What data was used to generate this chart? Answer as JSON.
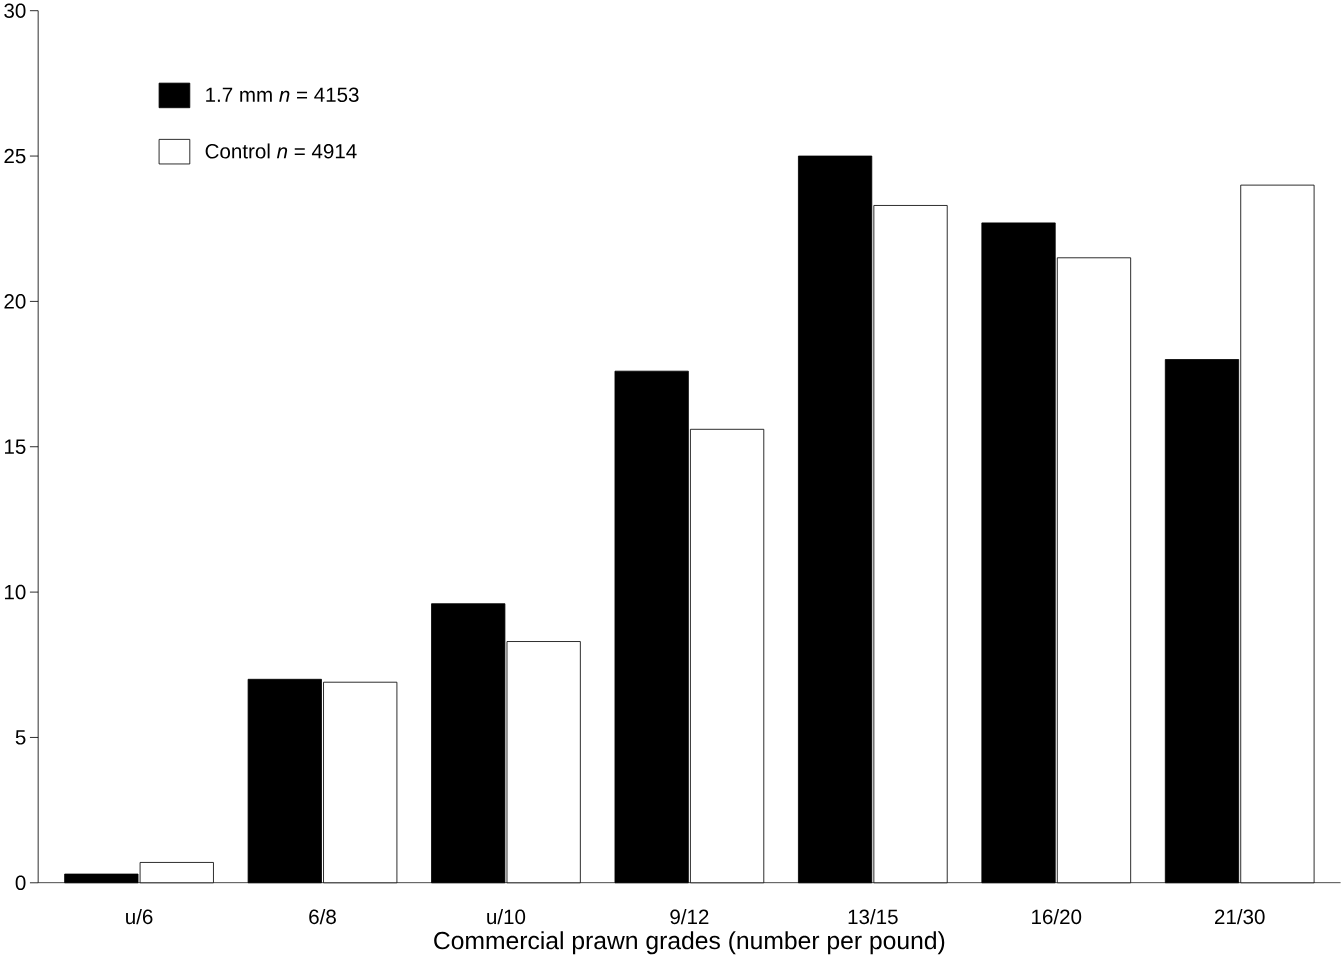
{
  "chart_data": {
    "type": "bar",
    "xlabel": "Commercial prawn grades (number per pound)",
    "categories": [
      "u/6",
      "6/8",
      "u/10",
      "9/12",
      "13/15",
      "16/20",
      "21/30"
    ],
    "series": [
      {
        "name": "1.7 mm *n* = 4153",
        "color": "#000000",
        "values": [
          0.3,
          7.0,
          9.6,
          17.6,
          25.0,
          22.7,
          18.0
        ]
      },
      {
        "name": "Control *n* = 4914",
        "color": "#ffffff",
        "values": [
          0.7,
          6.9,
          8.3,
          15.6,
          23.3,
          21.5,
          24.0
        ]
      }
    ],
    "ylim": [
      0,
      30
    ],
    "yticks": [
      0,
      5,
      10,
      15,
      20,
      25,
      30
    ],
    "grid": false,
    "legend": "top left"
  }
}
